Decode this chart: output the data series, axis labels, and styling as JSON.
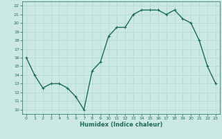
{
  "x": [
    0,
    1,
    2,
    3,
    4,
    5,
    6,
    7,
    8,
    9,
    10,
    11,
    12,
    13,
    14,
    15,
    16,
    17,
    18,
    19,
    20,
    21,
    22,
    23
  ],
  "y": [
    16.0,
    14.0,
    12.5,
    13.0,
    13.0,
    12.5,
    11.5,
    10.0,
    14.5,
    15.5,
    18.5,
    19.5,
    19.5,
    21.0,
    21.5,
    21.5,
    21.5,
    21.0,
    21.5,
    20.5,
    20.0,
    18.0,
    15.0,
    13.0
  ],
  "xlabel": "Humidex (Indice chaleur)",
  "xlim": [
    -0.5,
    23.5
  ],
  "ylim": [
    9.5,
    22.5
  ],
  "yticks": [
    10,
    11,
    12,
    13,
    14,
    15,
    16,
    17,
    18,
    19,
    20,
    21,
    22
  ],
  "xticks": [
    0,
    1,
    2,
    3,
    4,
    5,
    6,
    7,
    8,
    9,
    10,
    11,
    12,
    13,
    14,
    15,
    16,
    17,
    18,
    19,
    20,
    21,
    22,
    23
  ],
  "line_color": "#1a6b5a",
  "marker": "+",
  "bg_color": "#cce8e4",
  "grid_color": "#b0d8d2",
  "label_color": "#1a6b5a"
}
